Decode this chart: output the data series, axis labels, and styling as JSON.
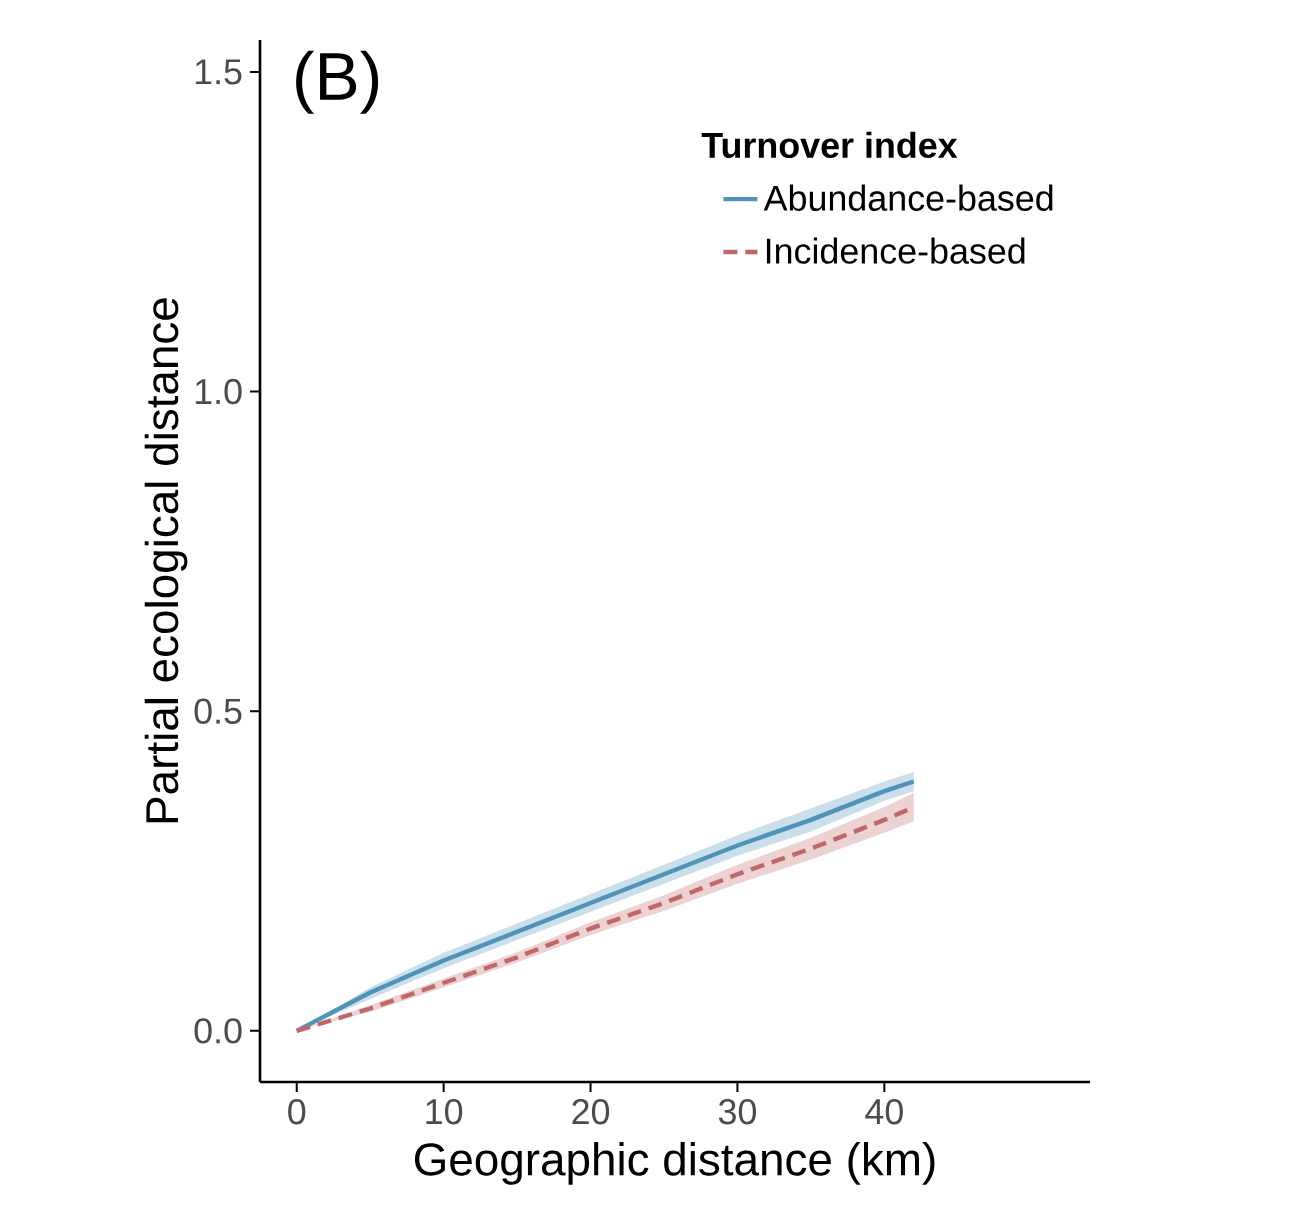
{
  "chart_data": {
    "type": "line",
    "title": "(B)",
    "xlabel": "Geographic distance (km)",
    "ylabel": "Partial ecological distance",
    "legend_title": "Turnover index",
    "legend": "top right",
    "grid": false,
    "xlim": [
      -2.5,
      54
    ],
    "ylim": [
      -0.08,
      1.55
    ],
    "xticks": [
      0,
      10,
      20,
      30,
      40
    ],
    "yticks": [
      {
        "value": 0,
        "label": "0.0"
      },
      {
        "value": 0.5,
        "label": "0.5"
      },
      {
        "value": 1,
        "label": "1.0"
      },
      {
        "value": 1.5,
        "label": "1.5"
      }
    ],
    "x": [
      0,
      5,
      10,
      15,
      20,
      25,
      30,
      35,
      40,
      42
    ],
    "series": [
      {
        "name": "Abundance-based",
        "color": "#4f93b8",
        "line_style": "solid",
        "values": [
          0,
          0.06,
          0.11,
          0.155,
          0.2,
          0.245,
          0.29,
          0.33,
          0.375,
          0.39
        ],
        "lower": [
          0,
          0.05,
          0.098,
          0.142,
          0.186,
          0.23,
          0.274,
          0.312,
          0.36,
          0.375
        ],
        "upper": [
          0,
          0.068,
          0.122,
          0.168,
          0.214,
          0.26,
          0.306,
          0.348,
          0.39,
          0.405
        ]
      },
      {
        "name": "Incidence-based",
        "color": "#c06868",
        "line_style": "dashed",
        "values": [
          0,
          0.035,
          0.075,
          0.115,
          0.16,
          0.2,
          0.245,
          0.285,
          0.33,
          0.35
        ],
        "lower": [
          0,
          0.03,
          0.068,
          0.107,
          0.15,
          0.188,
          0.23,
          0.268,
          0.31,
          0.328
        ],
        "upper": [
          0,
          0.04,
          0.082,
          0.123,
          0.17,
          0.212,
          0.26,
          0.302,
          0.35,
          0.372
        ]
      }
    ]
  }
}
